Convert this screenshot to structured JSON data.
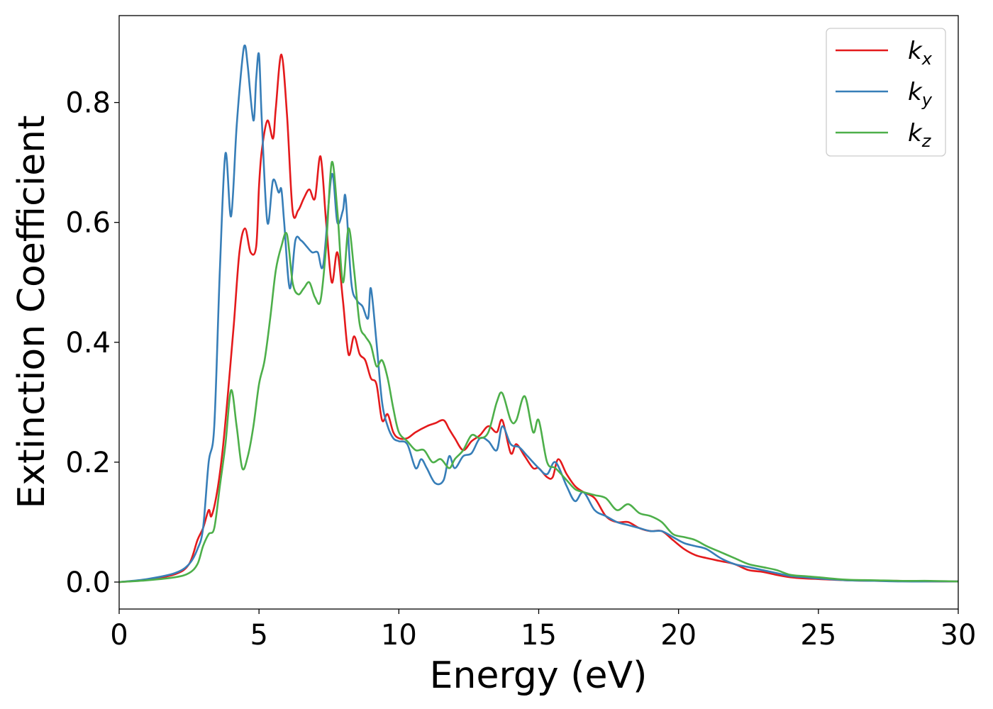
{
  "chart_data": {
    "type": "line",
    "xlabel": "Energy (eV)",
    "ylabel": "Extinction Coefficient",
    "xlim": [
      0,
      30
    ],
    "ylim": [
      -0.045,
      0.945
    ],
    "xticks": [
      0,
      5,
      10,
      15,
      20,
      25,
      30
    ],
    "yticks": [
      0.0,
      0.2,
      0.4,
      0.6,
      0.8
    ],
    "grid": false,
    "legend_position": "top-right",
    "series": [
      {
        "name": "k",
        "sub": "x",
        "color": "#e41a1c",
        "x": [
          0,
          1,
          2,
          2.5,
          2.8,
          3.0,
          3.2,
          3.3,
          3.5,
          3.7,
          3.9,
          4.1,
          4.3,
          4.5,
          4.7,
          4.9,
          5.0,
          5.1,
          5.3,
          5.5,
          5.6,
          5.8,
          6.0,
          6.2,
          6.4,
          6.6,
          6.8,
          7.0,
          7.2,
          7.4,
          7.6,
          7.8,
          8.0,
          8.2,
          8.4,
          8.6,
          8.8,
          9.0,
          9.2,
          9.4,
          9.6,
          9.8,
          10.0,
          10.3,
          10.6,
          11.0,
          11.3,
          11.6,
          11.8,
          12.0,
          12.3,
          12.6,
          12.9,
          13.2,
          13.5,
          13.7,
          14.0,
          14.2,
          14.5,
          14.8,
          15.0,
          15.3,
          15.5,
          15.7,
          16.0,
          16.3,
          16.6,
          17.0,
          17.4,
          17.8,
          18.2,
          18.6,
          19.0,
          19.4,
          19.8,
          20.2,
          20.6,
          21.0,
          21.5,
          22.0,
          22.5,
          23.0,
          23.5,
          24.0,
          24.5,
          25.0,
          26.0,
          27.0,
          28.0,
          29.0,
          30.0
        ],
        "y": [
          0.0,
          0.004,
          0.013,
          0.03,
          0.07,
          0.09,
          0.12,
          0.11,
          0.15,
          0.22,
          0.32,
          0.43,
          0.55,
          0.59,
          0.55,
          0.56,
          0.66,
          0.72,
          0.77,
          0.74,
          0.79,
          0.88,
          0.78,
          0.62,
          0.62,
          0.64,
          0.655,
          0.64,
          0.71,
          0.6,
          0.5,
          0.55,
          0.47,
          0.38,
          0.41,
          0.38,
          0.37,
          0.34,
          0.33,
          0.27,
          0.28,
          0.25,
          0.24,
          0.24,
          0.25,
          0.26,
          0.265,
          0.27,
          0.255,
          0.24,
          0.22,
          0.235,
          0.245,
          0.26,
          0.25,
          0.27,
          0.215,
          0.23,
          0.21,
          0.19,
          0.19,
          0.175,
          0.175,
          0.205,
          0.18,
          0.16,
          0.15,
          0.14,
          0.11,
          0.1,
          0.1,
          0.09,
          0.085,
          0.085,
          0.07,
          0.055,
          0.045,
          0.04,
          0.035,
          0.03,
          0.02,
          0.017,
          0.012,
          0.008,
          0.006,
          0.005,
          0.003,
          0.002,
          0.002,
          0.001,
          0.001
        ]
      },
      {
        "name": "k",
        "sub": "y",
        "color": "#377eb8",
        "x": [
          0,
          1,
          2,
          2.5,
          2.8,
          3.0,
          3.2,
          3.4,
          3.6,
          3.8,
          4.0,
          4.2,
          4.4,
          4.5,
          4.6,
          4.8,
          4.9,
          5.0,
          5.1,
          5.3,
          5.5,
          5.7,
          5.8,
          5.9,
          6.1,
          6.3,
          6.5,
          6.7,
          6.9,
          7.1,
          7.3,
          7.6,
          7.8,
          8.0,
          8.1,
          8.3,
          8.5,
          8.7,
          8.9,
          9.0,
          9.2,
          9.4,
          9.6,
          9.8,
          10.0,
          10.3,
          10.6,
          10.8,
          11.0,
          11.3,
          11.6,
          11.8,
          12.0,
          12.3,
          12.6,
          12.9,
          13.2,
          13.5,
          13.7,
          14.0,
          14.3,
          14.6,
          15.0,
          15.3,
          15.6,
          16.0,
          16.3,
          16.6,
          17.0,
          17.4,
          17.8,
          18.2,
          18.6,
          19.0,
          19.4,
          19.8,
          20.2,
          20.6,
          21.0,
          21.5,
          22.0,
          22.5,
          23.0,
          23.5,
          24.0,
          24.5,
          25.0,
          26.0,
          27.0,
          28.0,
          29.0,
          30.0
        ],
        "y": [
          0.0,
          0.005,
          0.015,
          0.03,
          0.055,
          0.09,
          0.2,
          0.26,
          0.52,
          0.715,
          0.61,
          0.76,
          0.87,
          0.895,
          0.86,
          0.77,
          0.84,
          0.88,
          0.77,
          0.6,
          0.67,
          0.65,
          0.655,
          0.6,
          0.49,
          0.57,
          0.57,
          0.56,
          0.55,
          0.55,
          0.53,
          0.68,
          0.6,
          0.62,
          0.64,
          0.5,
          0.47,
          0.46,
          0.44,
          0.49,
          0.4,
          0.3,
          0.26,
          0.24,
          0.235,
          0.23,
          0.19,
          0.205,
          0.19,
          0.165,
          0.17,
          0.21,
          0.19,
          0.21,
          0.215,
          0.24,
          0.235,
          0.22,
          0.26,
          0.23,
          0.225,
          0.21,
          0.19,
          0.18,
          0.2,
          0.16,
          0.135,
          0.15,
          0.12,
          0.11,
          0.1,
          0.095,
          0.09,
          0.085,
          0.085,
          0.075,
          0.065,
          0.06,
          0.055,
          0.04,
          0.03,
          0.025,
          0.02,
          0.015,
          0.01,
          0.008,
          0.006,
          0.003,
          0.002,
          0.001,
          0.001,
          0.001
        ]
      },
      {
        "name": "k",
        "sub": "z",
        "color": "#4daf4a",
        "x": [
          0,
          1,
          2,
          2.5,
          2.8,
          3.0,
          3.2,
          3.4,
          3.6,
          3.8,
          4.0,
          4.2,
          4.4,
          4.6,
          4.8,
          5.0,
          5.2,
          5.4,
          5.6,
          5.8,
          6.0,
          6.2,
          6.4,
          6.6,
          6.8,
          7.0,
          7.2,
          7.4,
          7.6,
          7.8,
          8.0,
          8.2,
          8.4,
          8.6,
          8.8,
          9.0,
          9.2,
          9.4,
          9.6,
          9.8,
          10.0,
          10.3,
          10.6,
          10.9,
          11.2,
          11.5,
          11.8,
          12.0,
          12.3,
          12.6,
          12.9,
          13.2,
          13.5,
          13.7,
          14.0,
          14.2,
          14.5,
          14.8,
          15.0,
          15.3,
          15.6,
          16.0,
          16.3,
          16.6,
          17.0,
          17.4,
          17.8,
          18.2,
          18.6,
          19.0,
          19.4,
          19.8,
          20.2,
          20.6,
          21.0,
          21.5,
          22.0,
          22.5,
          23.0,
          23.5,
          24.0,
          24.5,
          25.0,
          26.0,
          27.0,
          28.0,
          29.0,
          30.0
        ],
        "y": [
          0.0,
          0.003,
          0.008,
          0.015,
          0.03,
          0.06,
          0.08,
          0.09,
          0.16,
          0.23,
          0.32,
          0.26,
          0.19,
          0.21,
          0.26,
          0.33,
          0.37,
          0.44,
          0.52,
          0.56,
          0.58,
          0.5,
          0.48,
          0.49,
          0.5,
          0.475,
          0.47,
          0.56,
          0.7,
          0.62,
          0.5,
          0.59,
          0.52,
          0.43,
          0.41,
          0.395,
          0.36,
          0.37,
          0.34,
          0.29,
          0.25,
          0.235,
          0.22,
          0.22,
          0.2,
          0.205,
          0.19,
          0.205,
          0.22,
          0.245,
          0.24,
          0.25,
          0.3,
          0.315,
          0.27,
          0.27,
          0.31,
          0.25,
          0.27,
          0.2,
          0.19,
          0.17,
          0.155,
          0.15,
          0.145,
          0.14,
          0.12,
          0.13,
          0.115,
          0.11,
          0.1,
          0.08,
          0.075,
          0.07,
          0.06,
          0.05,
          0.04,
          0.03,
          0.025,
          0.02,
          0.012,
          0.01,
          0.008,
          0.004,
          0.003,
          0.002,
          0.002,
          0.001
        ]
      }
    ]
  }
}
